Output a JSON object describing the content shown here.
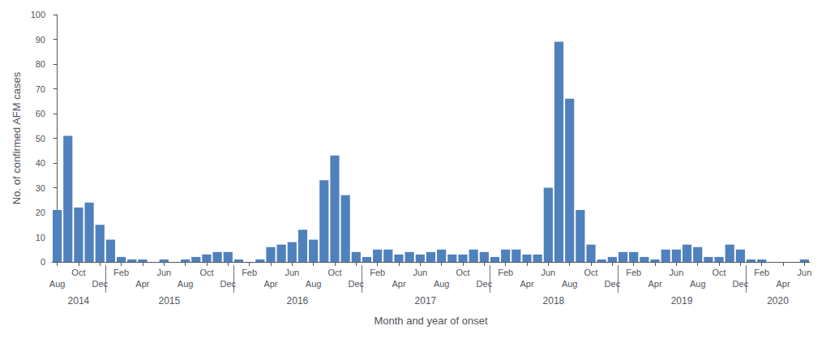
{
  "chart_data": {
    "type": "bar",
    "xlabel": "Month and year of onset",
    "ylabel": "No. of confirmed AFM cases",
    "categories": [
      "Aug",
      null,
      "Oct",
      null,
      "Dec",
      null,
      "Feb",
      null,
      "Apr",
      null,
      "Jun",
      null,
      "Aug",
      null,
      "Oct",
      null,
      "Dec",
      null,
      "Feb",
      null,
      "Apr",
      null,
      "Jun",
      null,
      "Aug",
      null,
      "Oct",
      null,
      "Dec",
      null,
      "Feb",
      null,
      "Apr",
      null,
      "Jun",
      null,
      "Aug",
      null,
      "Oct",
      null,
      "Dec",
      null,
      "Feb",
      null,
      "Apr",
      null,
      "Jun",
      null,
      "Aug",
      null,
      "Oct",
      null,
      "Dec",
      null,
      "Feb",
      null,
      "Apr",
      null,
      "Jun",
      null,
      "Aug",
      null,
      "Oct",
      null,
      "Dec",
      null,
      "Feb",
      null,
      "Apr",
      null,
      "Jun"
    ],
    "category_groups": [
      "2014",
      "2014",
      "2014",
      "2014",
      "2014",
      "2015",
      "2015",
      "2015",
      "2015",
      "2015",
      "2015",
      "2015",
      "2015",
      "2015",
      "2015",
      "2015",
      "2015",
      "2016",
      "2016",
      "2016",
      "2016",
      "2016",
      "2016",
      "2016",
      "2016",
      "2016",
      "2016",
      "2016",
      "2016",
      "2017",
      "2017",
      "2017",
      "2017",
      "2017",
      "2017",
      "2017",
      "2017",
      "2017",
      "2017",
      "2017",
      "2017",
      "2018",
      "2018",
      "2018",
      "2018",
      "2018",
      "2018",
      "2018",
      "2018",
      "2018",
      "2018",
      "2018",
      "2018",
      "2019",
      "2019",
      "2019",
      "2019",
      "2019",
      "2019",
      "2019",
      "2019",
      "2019",
      "2019",
      "2019",
      "2019",
      "2020",
      "2020",
      "2020",
      "2020",
      "2020",
      "2020"
    ],
    "values": [
      21,
      51,
      22,
      24,
      15,
      9,
      2,
      1,
      1,
      0,
      1,
      0,
      1,
      2,
      3,
      4,
      4,
      1,
      0,
      1,
      6,
      7,
      8,
      13,
      9,
      33,
      43,
      27,
      4,
      2,
      5,
      5,
      3,
      4,
      3,
      4,
      5,
      3,
      3,
      5,
      4,
      2,
      5,
      5,
      3,
      3,
      30,
      89,
      66,
      21,
      7,
      1,
      2,
      4,
      4,
      2,
      1,
      5,
      5,
      7,
      6,
      2,
      2,
      7,
      5,
      1,
      1,
      0,
      0,
      0,
      1
    ],
    "color": "#4F81BD",
    "ylim": [
      0,
      100
    ],
    "yticks": [
      0,
      10,
      20,
      30,
      40,
      50,
      60,
      70,
      80,
      90,
      100
    ],
    "grid": false
  }
}
